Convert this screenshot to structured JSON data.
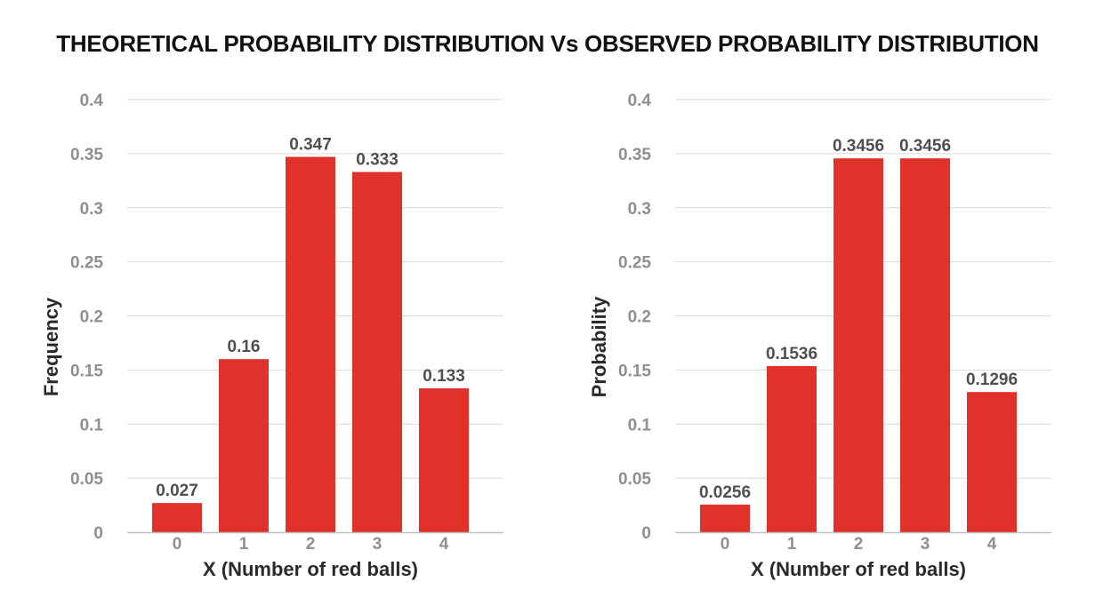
{
  "title": "THEORETICAL PROBABILITY DISTRIBUTION Vs OBSERVED PROBABILITY DISTRIBUTION",
  "colors": {
    "bar": "#e0322a",
    "grid": "#d9d9d9",
    "axis": "#bfbfbf"
  },
  "chart_data": [
    {
      "type": "bar",
      "categories": [
        "0",
        "1",
        "2",
        "3",
        "4"
      ],
      "values": [
        0.027,
        0.16,
        0.347,
        0.333,
        0.133
      ],
      "data_labels": [
        "0.027",
        "0.16",
        "0.347",
        "0.333",
        "0.133"
      ],
      "xlabel": "X (Number of red balls)",
      "ylabel": "Frequency",
      "ylim": [
        0,
        0.4
      ],
      "yticks": [
        0,
        0.05,
        0.1,
        0.15,
        0.2,
        0.25,
        0.3,
        0.35,
        0.4
      ],
      "ytick_labels": [
        "0",
        "0.05",
        "0.1",
        "0.15",
        "0.2",
        "0.25",
        "0.3",
        "0.35",
        "0.4"
      ],
      "grid": true
    },
    {
      "type": "bar",
      "categories": [
        "0",
        "1",
        "2",
        "3",
        "4"
      ],
      "values": [
        0.0256,
        0.1536,
        0.3456,
        0.3456,
        0.1296
      ],
      "data_labels": [
        "0.0256",
        "0.1536",
        "0.3456",
        "0.3456",
        "0.1296"
      ],
      "xlabel": "X (Number of red balls)",
      "ylabel": "Probability",
      "ylim": [
        0,
        0.4
      ],
      "yticks": [
        0,
        0.05,
        0.1,
        0.15,
        0.2,
        0.25,
        0.3,
        0.35,
        0.4
      ],
      "ytick_labels": [
        "0",
        "0.05",
        "0.1",
        "0.15",
        "0.2",
        "0.25",
        "0.3",
        "0.35",
        "0.4"
      ],
      "grid": true
    }
  ]
}
